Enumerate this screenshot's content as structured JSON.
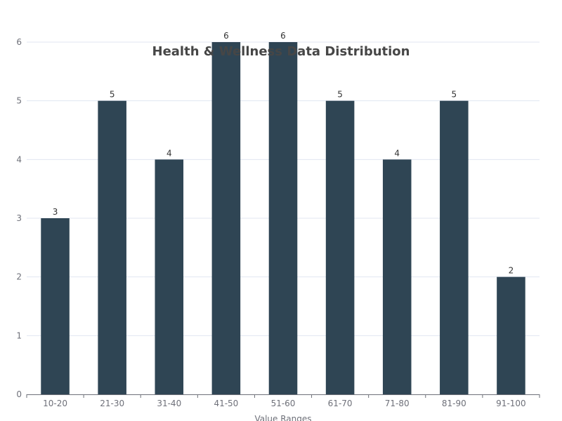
{
  "chart_data": {
    "type": "bar",
    "title": "Health & Wellness Data Distribution",
    "xlabel": "Value Ranges",
    "ylabel": "",
    "categories": [
      "10-20",
      "21-30",
      "31-40",
      "41-50",
      "51-60",
      "61-70",
      "71-80",
      "81-90",
      "91-100"
    ],
    "values": [
      3,
      5,
      4,
      6,
      6,
      5,
      4,
      5,
      2
    ],
    "ylim": [
      0,
      6
    ],
    "yticks": [
      0,
      1,
      2,
      3,
      4,
      5,
      6
    ],
    "grid": true,
    "bar_color": "#2f4554",
    "data_labels": true
  }
}
